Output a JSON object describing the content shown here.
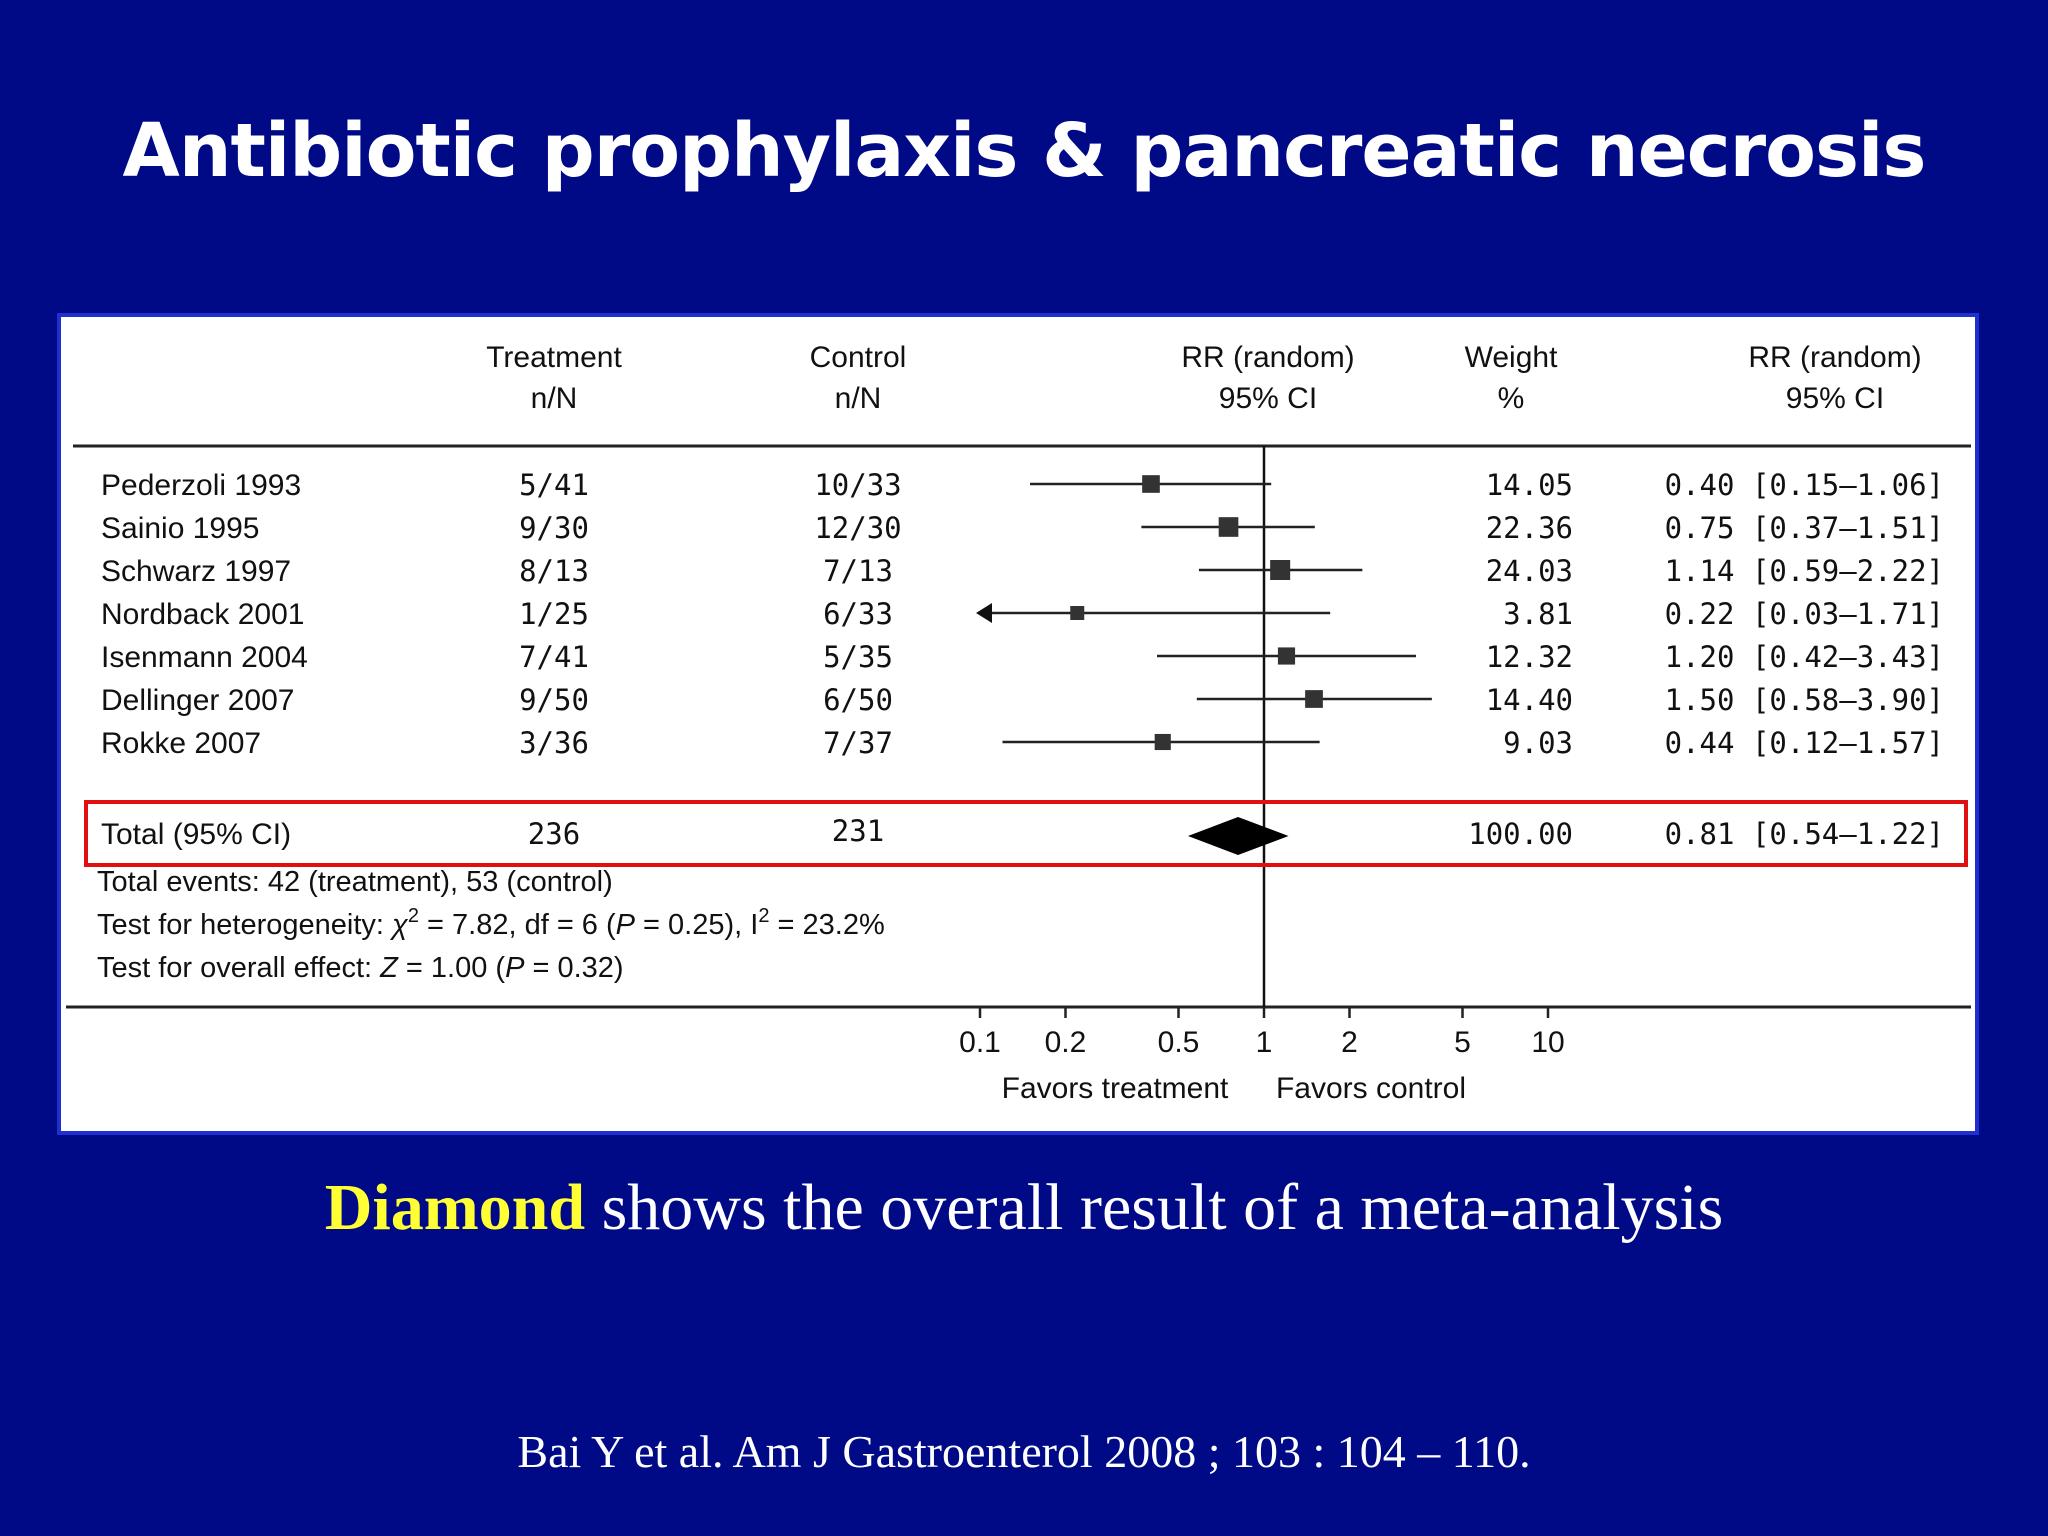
{
  "slide": {
    "title": "Antibiotic prophylaxis & pancreatic necrosis",
    "caption_highlight": "Diamond",
    "caption_rest": " shows the overall result of a meta-analysis",
    "citation": "Bai Y et al. Am J Gastroenterol 2008 ; 103 : 104 – 110."
  },
  "colors": {
    "background": "#000a87",
    "panel_border": "#1f2fd0",
    "highlight_box": "#e01010",
    "caption_highlight": "#ffff33"
  },
  "chart_data": {
    "type": "forest",
    "headers": {
      "treatment": [
        "Treatment",
        "n/N"
      ],
      "control": [
        "Control",
        "n/N"
      ],
      "plot": [
        "RR (random)",
        "95% CI"
      ],
      "weight": [
        "Weight",
        "%"
      ],
      "rr": [
        "RR (random)",
        "95% CI"
      ]
    },
    "x_scale": "log",
    "x_ticks": [
      0.1,
      0.2,
      0.5,
      1,
      2,
      5,
      10
    ],
    "xlim": [
      0.1,
      10
    ],
    "x_labels": {
      "left": "Favors treatment",
      "right": "Favors control"
    },
    "studies": [
      {
        "name": "Pederzoli 1993",
        "treatment": "5/41",
        "control": "10/33",
        "rr": 0.4,
        "lo": 0.15,
        "hi": 1.06,
        "weight": "14.05",
        "ci_text": "0.40 [0.15–1.06]"
      },
      {
        "name": "Sainio 1995",
        "treatment": "9/30",
        "control": "12/30",
        "rr": 0.75,
        "lo": 0.37,
        "hi": 1.51,
        "weight": "22.36",
        "ci_text": "0.75 [0.37–1.51]"
      },
      {
        "name": "Schwarz 1997",
        "treatment": "8/13",
        "control": "7/13",
        "rr": 1.14,
        "lo": 0.59,
        "hi": 2.22,
        "weight": "24.03",
        "ci_text": "1.14 [0.59–2.22]"
      },
      {
        "name": "Nordback 2001",
        "treatment": "1/25",
        "control": "6/33",
        "rr": 0.22,
        "lo": 0.03,
        "hi": 1.71,
        "weight": "3.81",
        "ci_text": "0.22 [0.03–1.71]",
        "arrow_left": true
      },
      {
        "name": "Isenmann 2004",
        "treatment": "7/41",
        "control": "5/35",
        "rr": 1.2,
        "lo": 0.42,
        "hi": 3.43,
        "weight": "12.32",
        "ci_text": "1.20 [0.42–3.43]"
      },
      {
        "name": "Dellinger 2007",
        "treatment": "9/50",
        "control": "6/50",
        "rr": 1.5,
        "lo": 0.58,
        "hi": 3.9,
        "weight": "14.40",
        "ci_text": "1.50 [0.58–3.90]"
      },
      {
        "name": "Rokke 2007",
        "treatment": "3/36",
        "control": "7/37",
        "rr": 0.44,
        "lo": 0.12,
        "hi": 1.57,
        "weight": "9.03",
        "ci_text": "0.44 [0.12–1.57]"
      }
    ],
    "total": {
      "name": "Total (95% CI)",
      "treatment": "236",
      "control": "231",
      "rr": 0.81,
      "lo": 0.54,
      "hi": 1.22,
      "weight": "100.00",
      "ci_text": "0.81 [0.54–1.22]"
    },
    "footer": {
      "events": "Total events: 42 (treatment), 53 (control)",
      "het_a": "Test for heterogeneity: ",
      "het_chi": "χ",
      "het_sup1": "2",
      "het_b": " = 7.82, df = 6 (",
      "het_p": "P",
      "het_c": " = 0.25), I",
      "het_sup2": "2",
      "het_d": " = 23.2%",
      "overall_a": "Test for overall effect: ",
      "overall_z": "Z",
      "overall_b": " = 1.00 (",
      "overall_p": "P",
      "overall_c": " = 0.32)"
    }
  }
}
